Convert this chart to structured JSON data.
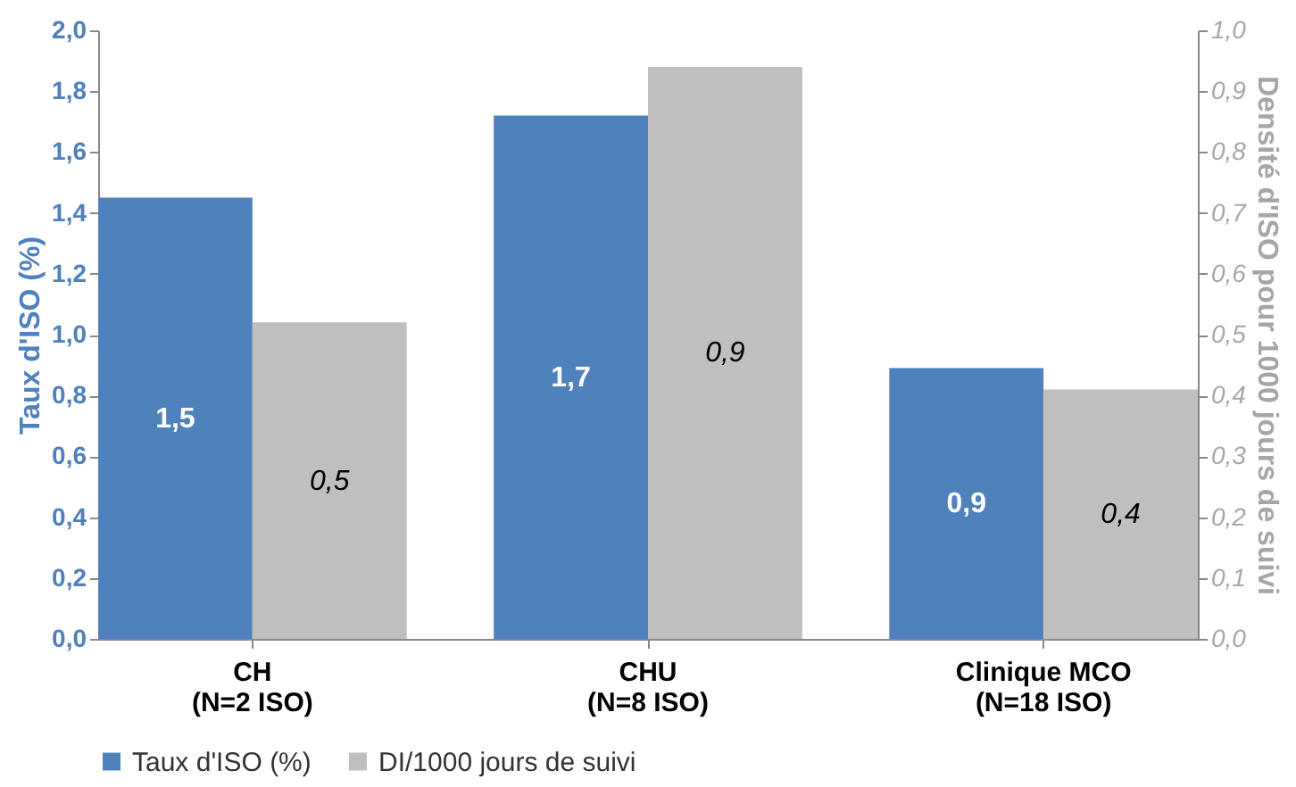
{
  "chart_data": {
    "type": "bar",
    "ylabel": "Taux d'ISO (%)",
    "y2label": "Densité d'ISO pour 1000 jours de suivi",
    "categories": [
      "CH\n(N=2 ISO)",
      "CHU\n(N=8 ISO)",
      "Clinique MCO\n(N=18 ISO)"
    ],
    "series": [
      {
        "name": "Taux d'ISO (%)",
        "color": "#4f81bd",
        "values": [
          1.45,
          1.72,
          0.89
        ],
        "value_labels": [
          "1,5",
          "1,7",
          "0,9"
        ]
      },
      {
        "name": "DI/1000 jours de suivi",
        "color": "#bfbfbf",
        "axis": "y2",
        "values": [
          0.52,
          0.94,
          0.41
        ],
        "value_labels": [
          "0,5",
          "0,9",
          "0,4"
        ]
      }
    ],
    "ylim": [
      0,
      2.0
    ],
    "yticks": [
      {
        "value": 0,
        "label": "0,0"
      },
      {
        "value": 0.2,
        "label": "0,2"
      },
      {
        "value": 0.4,
        "label": "0,4"
      },
      {
        "value": 0.6,
        "label": "0,6"
      },
      {
        "value": 0.8,
        "label": "0,8"
      },
      {
        "value": 1.0,
        "label": "1,0"
      },
      {
        "value": 1.2,
        "label": "1,2"
      },
      {
        "value": 1.4,
        "label": "1,4"
      },
      {
        "value": 1.6,
        "label": "1,6"
      },
      {
        "value": 1.8,
        "label": "1,8"
      },
      {
        "value": 2.0,
        "label": "2,0"
      }
    ],
    "y2lim": [
      0,
      1.0
    ],
    "y2ticks": [
      {
        "value": 0,
        "label": "0,0"
      },
      {
        "value": 0.1,
        "label": "0,1"
      },
      {
        "value": 0.2,
        "label": "0,2"
      },
      {
        "value": 0.3,
        "label": "0,3"
      },
      {
        "value": 0.4,
        "label": "0,4"
      },
      {
        "value": 0.5,
        "label": "0,5"
      },
      {
        "value": 0.6,
        "label": "0,6"
      },
      {
        "value": 0.7,
        "label": "0,7"
      },
      {
        "value": 0.8,
        "label": "0,8"
      },
      {
        "value": 0.9,
        "label": "0,9"
      },
      {
        "value": 1.0,
        "label": "1,0"
      }
    ],
    "grid": false,
    "legend": "bottom"
  }
}
